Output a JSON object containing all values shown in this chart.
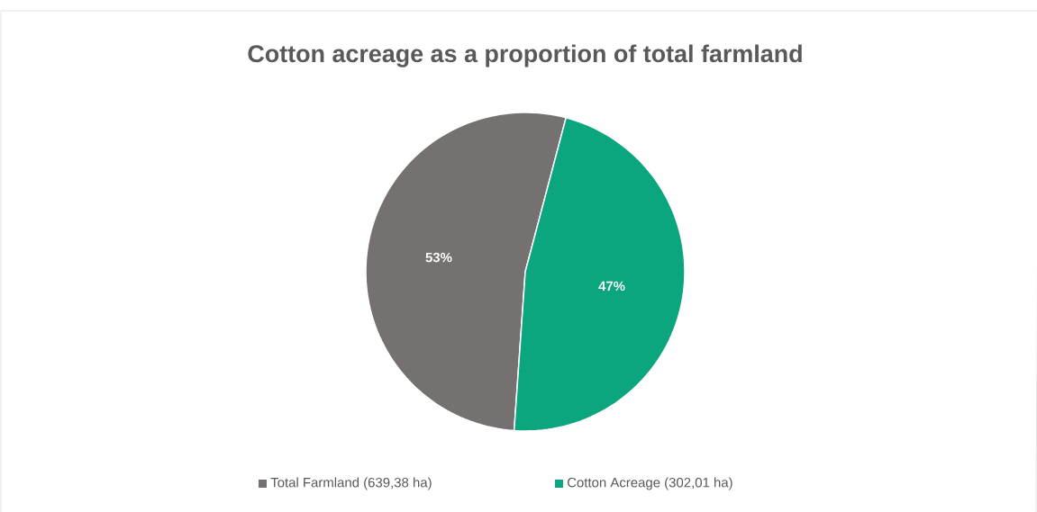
{
  "chart_data": {
    "type": "pie",
    "title": "Cotton acreage as a proportion of total farmland",
    "categories": [
      "Total Farmland (639,38 ha)",
      "Cotton Acreage (302,01 ha)"
    ],
    "values": [
      53,
      47
    ],
    "value_labels": [
      "53%",
      "47%"
    ],
    "colors": [
      "#767171",
      "#0ba57e"
    ],
    "legend": "bottom"
  }
}
